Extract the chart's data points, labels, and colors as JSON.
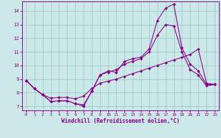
{
  "xlabel": "Windchill (Refroidissement éolien,°C)",
  "background_color": "#cce8e8",
  "line_color": "#880088",
  "grid_color": "#99cccc",
  "xlim": [
    -0.5,
    23.5
  ],
  "ylim": [
    6.7,
    14.7
  ],
  "xticks": [
    0,
    1,
    2,
    3,
    4,
    5,
    6,
    7,
    8,
    9,
    10,
    11,
    12,
    13,
    14,
    15,
    16,
    17,
    18,
    19,
    20,
    21,
    22,
    23
  ],
  "yticks": [
    7,
    8,
    9,
    10,
    11,
    12,
    13,
    14
  ],
  "line1_x": [
    0,
    1,
    2,
    3,
    4,
    5,
    6,
    7,
    8,
    9,
    10,
    11,
    12,
    13,
    14,
    15,
    16,
    17,
    18,
    19,
    20,
    21,
    22,
    23
  ],
  "line1_y": [
    8.9,
    8.3,
    7.85,
    7.35,
    7.4,
    7.4,
    7.2,
    7.0,
    8.1,
    9.3,
    9.6,
    9.5,
    10.3,
    10.5,
    10.6,
    11.2,
    13.3,
    14.2,
    14.5,
    11.3,
    10.1,
    9.6,
    8.6,
    8.6
  ],
  "line2_x": [
    0,
    1,
    2,
    3,
    4,
    5,
    6,
    7,
    8,
    9,
    10,
    11,
    12,
    13,
    14,
    15,
    16,
    17,
    18,
    19,
    20,
    21,
    22,
    23
  ],
  "line2_y": [
    8.9,
    8.3,
    7.85,
    7.35,
    7.4,
    7.4,
    7.2,
    7.1,
    8.1,
    9.3,
    9.5,
    9.7,
    10.1,
    10.3,
    10.5,
    11.0,
    12.2,
    13.0,
    12.9,
    11.0,
    9.7,
    9.3,
    8.5,
    8.6
  ],
  "line3_x": [
    0,
    1,
    2,
    3,
    4,
    5,
    6,
    7,
    8,
    9,
    10,
    11,
    12,
    13,
    14,
    15,
    16,
    17,
    18,
    19,
    20,
    21,
    22,
    23
  ],
  "line3_y": [
    8.9,
    8.3,
    7.85,
    7.6,
    7.65,
    7.65,
    7.55,
    7.75,
    8.3,
    8.7,
    8.85,
    9.0,
    9.2,
    9.4,
    9.6,
    9.8,
    10.0,
    10.2,
    10.4,
    10.6,
    10.8,
    11.2,
    8.7,
    8.6
  ]
}
